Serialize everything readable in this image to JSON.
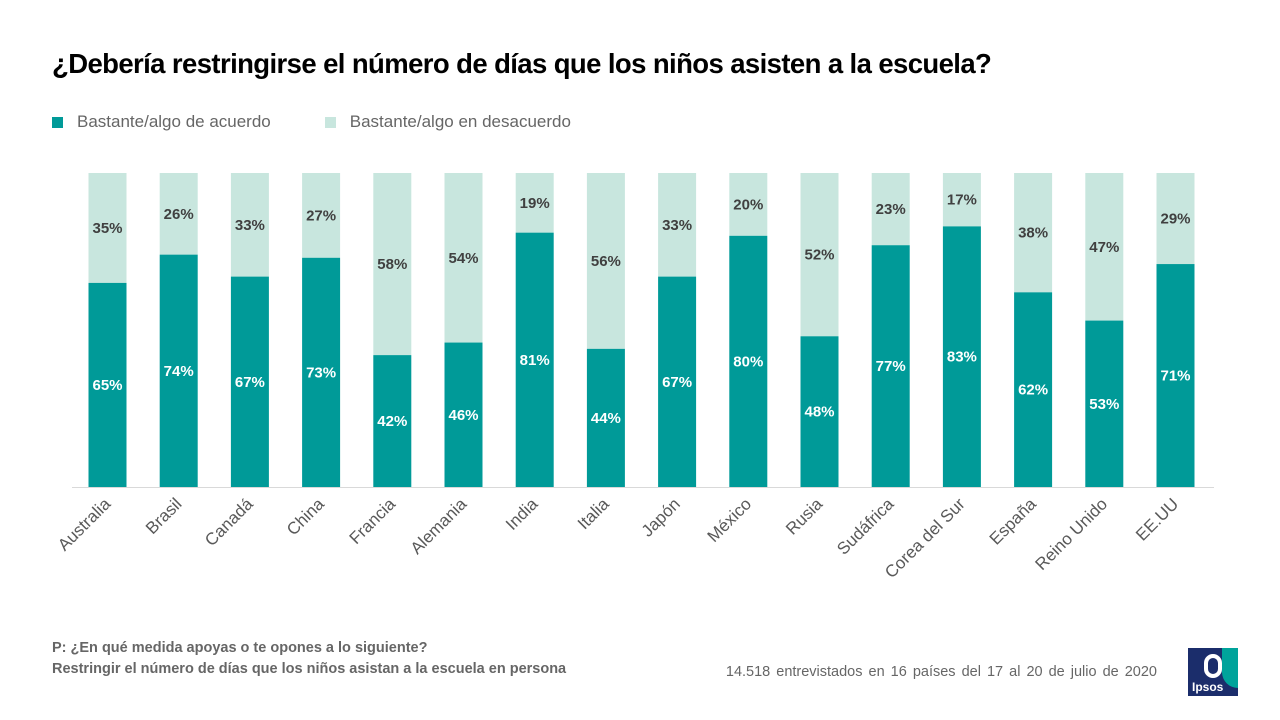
{
  "title": "¿Debería restringirse el número de días que los niños asisten a la escuela?",
  "legend": {
    "agree": "Bastante/algo de acuerdo",
    "disagree": "Bastante/algo en desacuerdo"
  },
  "colors": {
    "agree": "#009a98",
    "disagree": "#c8e6de",
    "agree_label": "#ffffff",
    "disagree_label": "#404040"
  },
  "chart_data": {
    "type": "bar",
    "stacked": true,
    "title": "¿Debería restringirse el número de días que los niños asisten a la escuela?",
    "xlabel": "",
    "ylabel": "",
    "ylim": [
      0,
      100
    ],
    "categories": [
      "Australia",
      "Brasil",
      "Canadá",
      "China",
      "Francia",
      "Alemania",
      "India",
      "Italia",
      "Japón",
      "México",
      "Rusia",
      "Sudáfrica",
      "Corea del Sur",
      "España",
      "Reino Unido",
      "EE.UU"
    ],
    "series": [
      {
        "name": "Bastante/algo de acuerdo",
        "values": [
          65,
          74,
          67,
          73,
          42,
          46,
          81,
          44,
          67,
          80,
          48,
          77,
          83,
          62,
          53,
          71
        ],
        "labels": [
          "65%",
          "74%",
          "67%",
          "73%",
          "42%",
          "46%",
          "81%",
          "44%",
          "67%",
          "80%",
          "48%",
          "77%",
          "83%",
          "62%",
          "53%",
          "71%"
        ]
      },
      {
        "name": "Bastante/algo en desacuerdo",
        "values": [
          35,
          26,
          33,
          27,
          58,
          54,
          19,
          56,
          33,
          20,
          52,
          23,
          17,
          38,
          47,
          29
        ],
        "labels": [
          "35%",
          "26%",
          "33%",
          "27%",
          "58%",
          "54%",
          "19%",
          "56%",
          "33%",
          "20%",
          "52%",
          "23%",
          "17%",
          "38%",
          "47%",
          "29%"
        ]
      }
    ],
    "legend": "top-left"
  },
  "footer": {
    "question_line1": "P: ¿En qué medida apoyas o te opones a lo siguiente?",
    "question_line2": "Restringir el número de días que los niños asistan a la escuela en persona",
    "sample": "14.518 entrevistados en 16 países del 17 al 20 de julio de 2020"
  },
  "logo": {
    "text": "Ipsos"
  }
}
